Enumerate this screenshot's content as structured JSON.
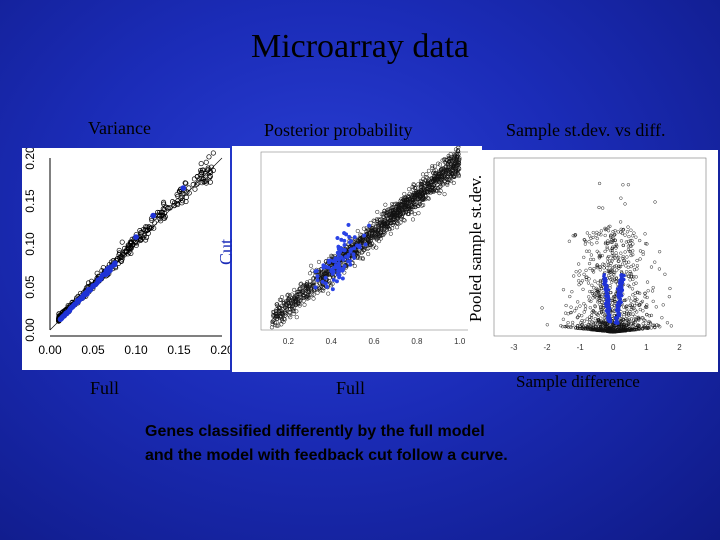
{
  "slide": {
    "title": "Microarray data",
    "panels": {
      "left": {
        "header": "Variance",
        "xlabel": "Full",
        "ylabel": "Cut"
      },
      "middle": {
        "header": "Posterior probability",
        "xlabel": "Full"
      },
      "right": {
        "header": "Sample st.dev. vs diff.",
        "xlabel": "Sample difference",
        "ylabel": "Pooled sample st.dev."
      }
    },
    "caption_line1": "Genes  classified differently by the full model",
    "caption_line2": "and the model with feedback cut follow a curve."
  },
  "chart_data": [
    {
      "type": "scatter",
      "title": "Variance",
      "xlabel": "Full",
      "ylabel": "Cut",
      "xlim": [
        0,
        0.2
      ],
      "ylim": [
        0,
        0.2
      ],
      "x_ticks": [
        "0.00",
        "0.05",
        "0.10",
        "0.15",
        "0.20"
      ],
      "y_ticks": [
        "0.00",
        "0.05",
        "0.10",
        "0.15",
        "0.20"
      ]
    },
    {
      "type": "scatter",
      "title": "Posterior probability",
      "xlabel": "Full",
      "x_ticks": [
        "0.2",
        "0.4",
        "0.6",
        "0.8",
        "1.0"
      ]
    },
    {
      "type": "scatter",
      "title": "Sample st.dev. vs diff.",
      "xlabel": "Sample difference",
      "ylabel": "Pooled sample st.dev.",
      "x_ticks": [
        "-3",
        "-2",
        "-1",
        "0",
        "1",
        "2"
      ]
    }
  ]
}
